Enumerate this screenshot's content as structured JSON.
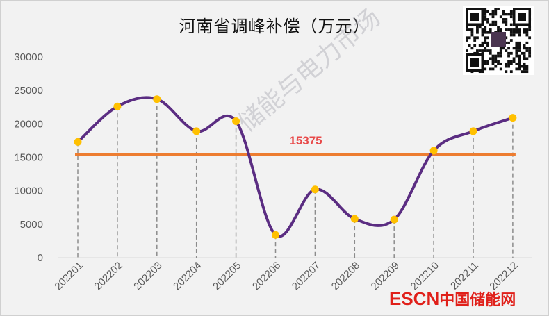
{
  "chart_data": {
    "type": "line",
    "title": "河南省调峰补偿（万元）",
    "categories": [
      "202201",
      "202202",
      "202203",
      "202204",
      "202205",
      "202206",
      "202207",
      "202208",
      "202209",
      "202210",
      "202211",
      "202212"
    ],
    "series": [
      {
        "values": [
          17300,
          22600,
          23700,
          18900,
          20400,
          3400,
          10200,
          5800,
          5700,
          16000,
          18900,
          20900
        ],
        "color": "#5b2d82",
        "smooth": true,
        "marker_color": "#ffc000"
      }
    ],
    "reference_line": {
      "value": 15375,
      "label": "15375",
      "color": "#ed7d31",
      "label_color": "#e84a4a"
    },
    "ylim": [
      0,
      30000
    ],
    "yticks": [
      "0",
      "5000",
      "10000",
      "15000",
      "20000",
      "25000",
      "30000"
    ],
    "grid": false,
    "drop_lines": true
  },
  "watermark": "储能与电力市场",
  "logo": {
    "latin": "ESCN",
    "cn": "中国储能网"
  }
}
